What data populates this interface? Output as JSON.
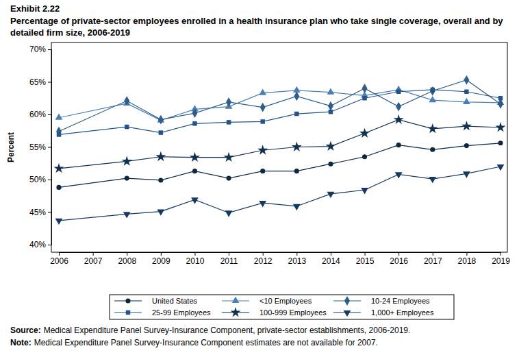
{
  "chart_data": {
    "type": "line",
    "exhibit": "Exhibit 2.22",
    "title": [
      "Percentage of private-sector employees enrolled in a health insurance plan who take single coverage, overall and by",
      "detailed firm size, 2006-2019"
    ],
    "ylabel": "Percent",
    "x": [
      2006,
      2008,
      2009,
      2010,
      2011,
      2012,
      2013,
      2014,
      2015,
      2016,
      2017,
      2018,
      2019
    ],
    "xlim": [
      2006,
      2019
    ],
    "xticks": [
      2006,
      2007,
      2008,
      2009,
      2010,
      2011,
      2012,
      2013,
      2014,
      2015,
      2016,
      2017,
      2018,
      2019
    ],
    "ylim": [
      40,
      70
    ],
    "yticks": [
      {
        "value": 40,
        "label": "40%"
      },
      {
        "value": 45,
        "label": "45%"
      },
      {
        "value": 50,
        "label": "50%"
      },
      {
        "value": 55,
        "label": "55%"
      },
      {
        "value": 60,
        "label": "60%"
      },
      {
        "value": 65,
        "label": "65%"
      },
      {
        "value": 70,
        "label": "70%"
      }
    ],
    "grid": false,
    "legend": "bottom",
    "series": [
      {
        "name": "United States",
        "color": "#0e2841",
        "marker": "circle",
        "values": [
          48.8,
          50.2,
          49.9,
          51.3,
          50.2,
          51.3,
          51.3,
          52.4,
          53.5,
          55.3,
          54.6,
          55.2,
          55.6
        ]
      },
      {
        "name": "<10 Employees",
        "color": "#4a7fb5",
        "marker": "triangle",
        "values": [
          59.5,
          61.7,
          59.1,
          60.8,
          61.2,
          63.3,
          63.7,
          63.4,
          62.9,
          63.8,
          62.2,
          61.9,
          61.8
        ]
      },
      {
        "name": "10-24 Employees",
        "color": "#2e5d87",
        "marker": "diamond",
        "values": [
          57.4,
          62.1,
          59.2,
          60.2,
          61.9,
          61.1,
          62.8,
          61.3,
          64.0,
          61.2,
          63.6,
          65.3,
          61.6
        ]
      },
      {
        "name": "25-99 Employees",
        "color": "#23558a",
        "marker": "square",
        "values": [
          56.9,
          58.1,
          57.2,
          58.6,
          58.8,
          58.9,
          60.1,
          60.4,
          62.5,
          63.5,
          63.8,
          63.5,
          62.5
        ]
      },
      {
        "name": "100-999 Employees",
        "color": "#12304f",
        "marker": "star",
        "values": [
          51.7,
          52.8,
          53.5,
          53.4,
          53.4,
          54.5,
          55.0,
          55.1,
          57.1,
          59.2,
          57.8,
          58.2,
          58.0
        ]
      },
      {
        "name": "1,000+ Employees",
        "color": "#163a5f",
        "marker": "triangle-down",
        "values": [
          43.7,
          44.7,
          45.1,
          46.9,
          44.9,
          46.4,
          45.9,
          47.8,
          48.4,
          50.8,
          50.1,
          50.9,
          52.0
        ]
      }
    ],
    "annotations": [
      {
        "label": "Source:",
        "text": "Medical Expenditure Panel Survey-Insurance Component, private-sector establishments, 2006-2019."
      },
      {
        "label": "Note:",
        "text": "Medical Expenditure Panel Survey-Insurance Component estimates are not available for 2007."
      }
    ]
  }
}
